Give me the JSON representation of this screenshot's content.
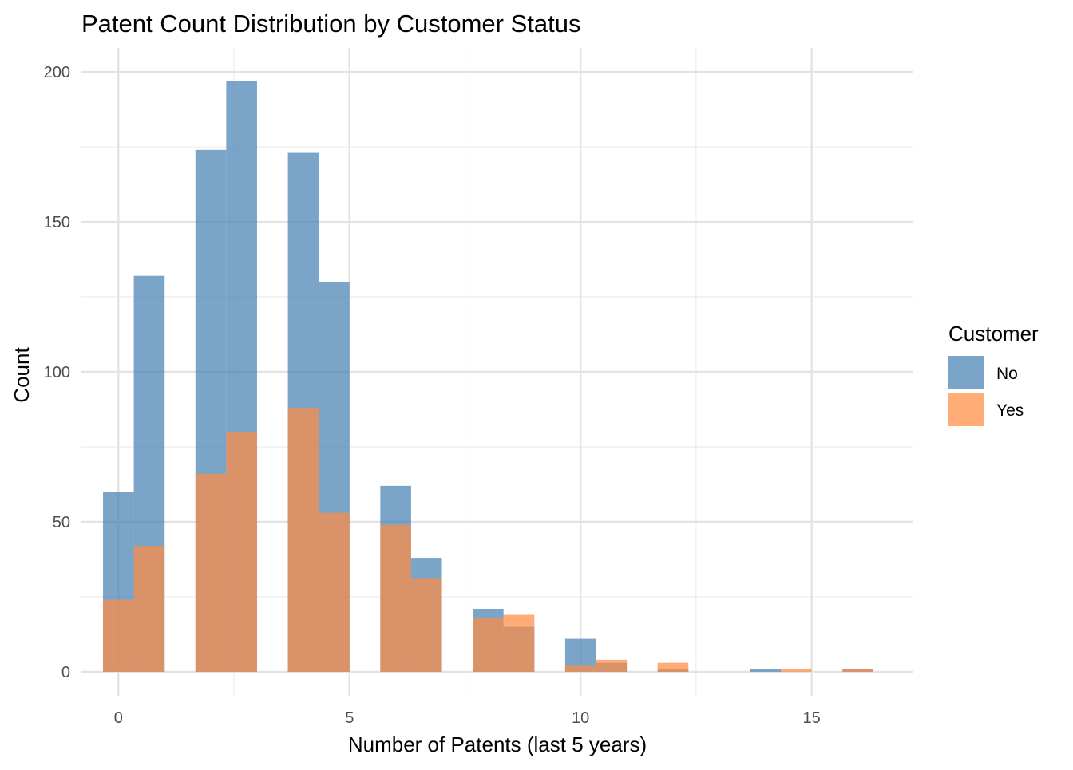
{
  "chart_data": {
    "type": "bar",
    "subtype": "overlapping-histogram",
    "title": "Patent Count Distribution by Customer Status",
    "xlabel": "Number of Patents (last 5 years)",
    "ylabel": "Count",
    "xlim": [
      -0.8,
      17.2
    ],
    "ylim": [
      -8,
      208
    ],
    "x_ticks": [
      0,
      5,
      10,
      15
    ],
    "y_ticks": [
      0,
      50,
      100,
      150,
      200
    ],
    "x_minor_gridlines": [
      2.5,
      7.5,
      12.5
    ],
    "y_minor_gridlines": [
      25,
      75,
      125,
      175
    ],
    "grid": true,
    "bin_width": 0.6667,
    "legend": {
      "title": "Customer",
      "position": "right",
      "entries": [
        "No",
        "Yes"
      ]
    },
    "series": [
      {
        "name": "No",
        "color": "#4682B4",
        "opacity": 0.72,
        "bins": [
          {
            "x0": -0.333,
            "x1": 0.333,
            "count": 60
          },
          {
            "x0": 0.333,
            "x1": 1.0,
            "count": 132
          },
          {
            "x0": 1.667,
            "x1": 2.333,
            "count": 174
          },
          {
            "x0": 2.333,
            "x1": 3.0,
            "count": 197
          },
          {
            "x0": 3.667,
            "x1": 4.333,
            "count": 173
          },
          {
            "x0": 4.333,
            "x1": 5.0,
            "count": 130
          },
          {
            "x0": 5.667,
            "x1": 6.333,
            "count": 62
          },
          {
            "x0": 6.333,
            "x1": 7.0,
            "count": 38
          },
          {
            "x0": 7.667,
            "x1": 8.333,
            "count": 21
          },
          {
            "x0": 8.333,
            "x1": 9.0,
            "count": 15
          },
          {
            "x0": 9.667,
            "x1": 10.333,
            "count": 11
          },
          {
            "x0": 10.333,
            "x1": 11.0,
            "count": 3
          },
          {
            "x0": 11.667,
            "x1": 12.333,
            "count": 1
          },
          {
            "x0": 13.667,
            "x1": 14.333,
            "count": 1
          },
          {
            "x0": 15.667,
            "x1": 16.333,
            "count": 1
          }
        ]
      },
      {
        "name": "Yes",
        "color": "#FF8C42",
        "opacity": 0.72,
        "bins": [
          {
            "x0": -0.333,
            "x1": 0.333,
            "count": 24
          },
          {
            "x0": 0.333,
            "x1": 1.0,
            "count": 42
          },
          {
            "x0": 1.667,
            "x1": 2.333,
            "count": 66
          },
          {
            "x0": 2.333,
            "x1": 3.0,
            "count": 80
          },
          {
            "x0": 3.667,
            "x1": 4.333,
            "count": 88
          },
          {
            "x0": 4.333,
            "x1": 5.0,
            "count": 53
          },
          {
            "x0": 5.667,
            "x1": 6.333,
            "count": 49
          },
          {
            "x0": 6.333,
            "x1": 7.0,
            "count": 31
          },
          {
            "x0": 7.667,
            "x1": 8.333,
            "count": 18
          },
          {
            "x0": 8.333,
            "x1": 9.0,
            "count": 19
          },
          {
            "x0": 9.667,
            "x1": 10.333,
            "count": 2
          },
          {
            "x0": 10.333,
            "x1": 11.0,
            "count": 4
          },
          {
            "x0": 11.667,
            "x1": 12.333,
            "count": 3
          },
          {
            "x0": 14.333,
            "x1": 15.0,
            "count": 1
          },
          {
            "x0": 15.667,
            "x1": 16.333,
            "count": 1
          }
        ]
      }
    ]
  }
}
